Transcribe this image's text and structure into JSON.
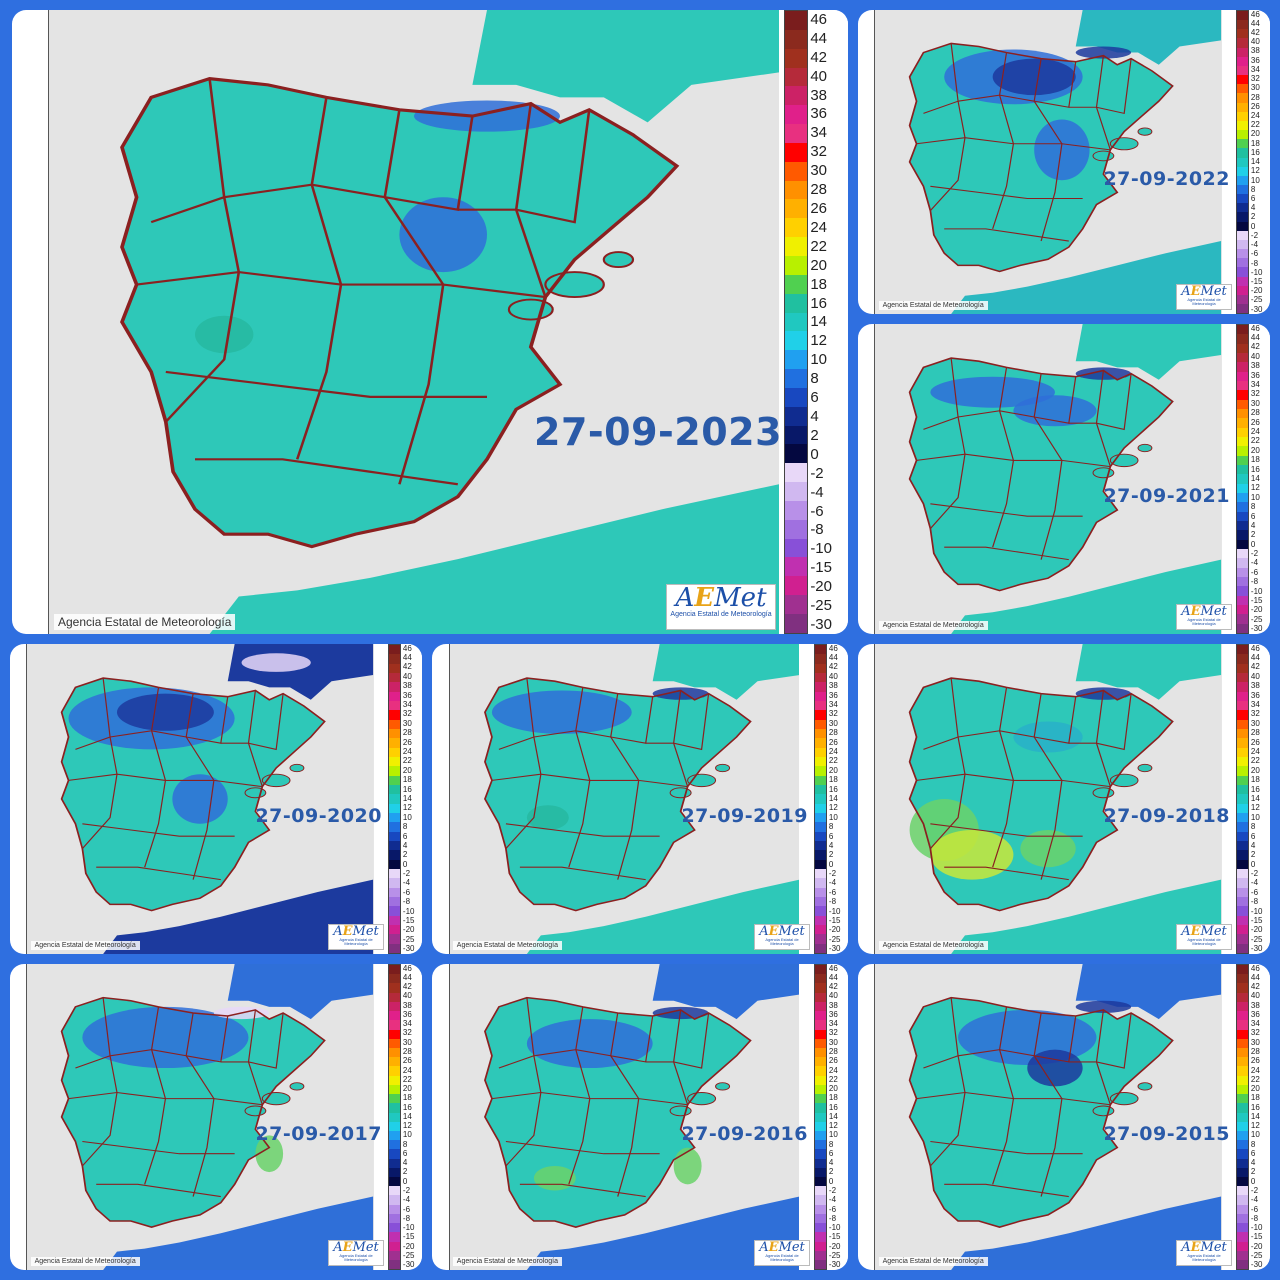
{
  "collage": {
    "credit": "Agencia Estatal de Meteorología",
    "logo_text_main": "A",
    "logo_text_accent": "E",
    "logo_text_tail": "Met",
    "logo_subtitle": "Agencia Estatal de Meteorología",
    "scale_labels": [
      "46",
      "44",
      "42",
      "40",
      "38",
      "36",
      "34",
      "32",
      "30",
      "28",
      "26",
      "24",
      "22",
      "20",
      "18",
      "16",
      "14",
      "12",
      "10",
      "8",
      "6",
      "4",
      "2",
      "0",
      "-2",
      "-4",
      "-6",
      "-8",
      "-10",
      "-15",
      "-20",
      "-25",
      "-30"
    ],
    "scale_colors": [
      "#7a1d1d",
      "#8b2a1e",
      "#a0301e",
      "#b52a3a",
      "#cc2266",
      "#e0208a",
      "#e83080",
      "#ff0000",
      "#ff5a00",
      "#ff9000",
      "#ffb000",
      "#ffd000",
      "#f0f000",
      "#b8f000",
      "#50d050",
      "#20c0a0",
      "#20c8c0",
      "#20d0e8",
      "#20a0f0",
      "#2070e0",
      "#1848c0",
      "#102c90",
      "#081868",
      "#040840",
      "#e8d8f8",
      "#d0b8f0",
      "#b890e8",
      "#a070e0",
      "#8850d8",
      "#c030b0",
      "#d02090",
      "#a03090",
      "#803080"
    ],
    "maps": [
      {
        "date": "27-09-2023"
      },
      {
        "date": "27-09-2022"
      },
      {
        "date": "27-09-2021"
      },
      {
        "date": "27-09-2020"
      },
      {
        "date": "27-09-2019"
      },
      {
        "date": "27-09-2018"
      },
      {
        "date": "27-09-2017"
      },
      {
        "date": "27-09-2016"
      },
      {
        "date": "27-09-2015"
      }
    ]
  }
}
